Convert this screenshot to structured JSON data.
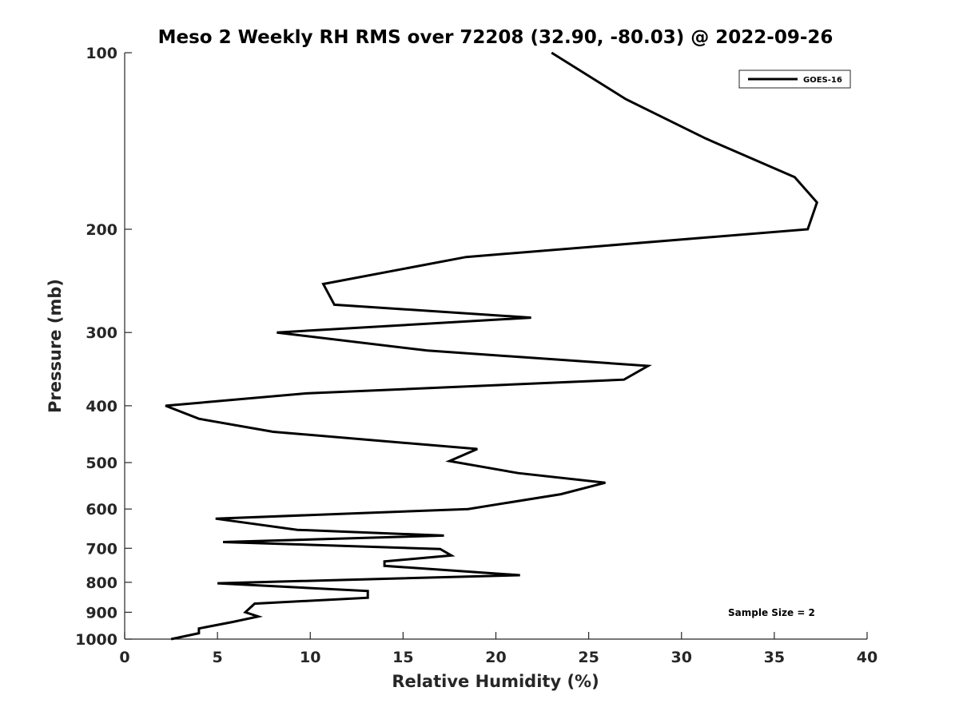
{
  "chart_data": {
    "type": "line",
    "title": "Meso 2 Weekly RH RMS over 72208 (32.90, -80.03) @ 2022-09-26",
    "xlabel": "Relative Humidity (%)",
    "ylabel": "Pressure (mb)",
    "xlim": [
      0,
      40
    ],
    "ylim": [
      100,
      1000
    ],
    "yscale": "log",
    "y_reversed": true,
    "xticks": [
      0,
      5,
      10,
      15,
      20,
      25,
      30,
      35,
      40
    ],
    "yticks": [
      100,
      200,
      300,
      400,
      500,
      600,
      700,
      800,
      900,
      1000
    ],
    "grid": false,
    "legend_position": "top-right",
    "annotation": "Sample Size = 2",
    "series": [
      {
        "name": "GOES-16",
        "color": "#000000",
        "x": [
          23.0,
          27.0,
          31.3,
          36.1,
          37.3,
          36.8,
          18.4,
          10.7,
          11.3,
          21.9,
          8.2,
          16.3,
          28.2,
          26.9,
          9.8,
          2.2,
          4.0,
          8.0,
          19.0,
          17.5,
          21.2,
          25.9,
          23.5,
          18.5,
          4.9,
          9.3,
          17.2,
          5.3,
          17.0,
          17.6,
          14.0,
          14.0,
          21.3,
          5.0,
          13.1,
          13.1,
          7.0,
          6.5,
          7.2,
          5.8,
          4.0,
          4.0,
          2.5
        ],
        "y": [
          100,
          120,
          140,
          163,
          180,
          200,
          223,
          248,
          269,
          283,
          300,
          322,
          342,
          361,
          381,
          400,
          421,
          443,
          474,
          497,
          521,
          541,
          566,
          600,
          623,
          651,
          666,
          683,
          702,
          720,
          737,
          750,
          778,
          803,
          828,
          850,
          870,
          900,
          915,
          935,
          959,
          977,
          1000
        ]
      }
    ]
  }
}
